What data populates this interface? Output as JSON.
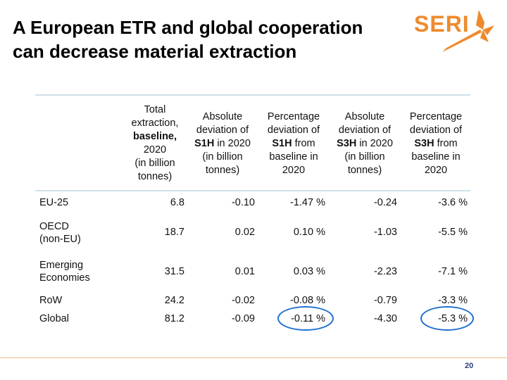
{
  "slide": {
    "title_line1": "A European ETR and global cooperation",
    "title_line2": "can decrease material extraction",
    "logo_text": "SERI",
    "page_number": "20"
  },
  "table": {
    "headers": {
      "col1": [
        "Total",
        "extraction,",
        "baseline,",
        "2020",
        "(in billion",
        "tonnes)"
      ],
      "col2_pre": "Absolute",
      "col2_line2": "deviation of",
      "col2_bold": "S1H",
      "col2_rest": " in 2020",
      "col2_line4": "(in billion",
      "col2_line5": "tonnes)",
      "col3_line1": "Percentage",
      "col3_line2": "deviation of",
      "col3_bold": "S1H",
      "col3_rest": " from",
      "col3_line4": "baseline in",
      "col3_line5": "2020",
      "col4_line1": "Absolute",
      "col4_line2": "deviation of",
      "col4_bold": "S3H",
      "col4_rest": " in 2020",
      "col4_line4": "(in billion",
      "col4_line5": "tonnes)",
      "col5_line1": "Percentage",
      "col5_line2": "deviation of",
      "col5_bold": "S3H",
      "col5_rest": " from",
      "col5_line4": "baseline in",
      "col5_line5": "2020"
    },
    "rows": [
      {
        "label": "EU-25",
        "total": "6.8",
        "abs_s1h": "-0.10",
        "pct_s1h": "-1.47 %",
        "abs_s3h": "-0.24",
        "pct_s3h": "-3.6 %"
      },
      {
        "label1": "OECD",
        "label2": "(non-EU)",
        "total": "18.7",
        "abs_s1h": "0.02",
        "pct_s1h": "0.10 %",
        "abs_s3h": "-1.03",
        "pct_s3h": "-5.5 %"
      },
      {
        "label1": "Emerging",
        "label2": "Economies",
        "total": "31.5",
        "abs_s1h": "0.01",
        "pct_s1h": "0.03 %",
        "abs_s3h": "-2.23",
        "pct_s3h": "-7.1 %"
      },
      {
        "label": "RoW",
        "total": "24.2",
        "abs_s1h": "-0.02",
        "pct_s1h": "-0.08 %",
        "abs_s3h": "-0.79",
        "pct_s3h": "-3.3 %"
      },
      {
        "label": "Global",
        "total": "81.2",
        "abs_s1h": "-0.09",
        "pct_s1h": "-0.11 %",
        "abs_s3h": "-4.30",
        "pct_s3h": "-5.3 %"
      }
    ]
  },
  "colors": {
    "logo": "#ee8a2c",
    "highlight": "#1f6fd1",
    "page_number": "#2a3d7c"
  }
}
